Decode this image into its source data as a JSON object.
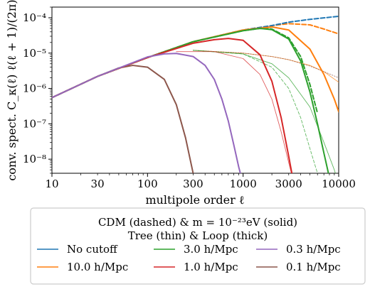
{
  "chart_data": {
    "type": "line",
    "xscale": "log",
    "yscale": "log",
    "xlim": [
      10,
      10000
    ],
    "ylim": [
      4e-09,
      0.0002
    ],
    "xlabel": "multipole order ℓ",
    "ylabel": "conv. spect. C_κ(ℓ) ℓ(ℓ + 1)/(2π)",
    "xticks": [
      10,
      30,
      100,
      300,
      1000,
      3000,
      10000
    ],
    "xtick_labels": [
      "10",
      "30",
      "100",
      "300",
      "1000",
      "3000",
      "10000"
    ],
    "yticks": [
      1e-08,
      1e-07,
      1e-06,
      1e-05,
      0.0001
    ],
    "ytick_labels": [
      "10⁻⁸",
      "10⁻⁷",
      "10⁻⁶",
      "10⁻⁵",
      "10⁻⁴"
    ],
    "grid": false,
    "legend": {
      "placement": "bottom-outside",
      "title_line1": "CDM (dashed) & m = 10⁻²³eV (solid)",
      "title_line2": "Tree (thin) & Loop (thick)",
      "entries": [
        {
          "label": "No cutoff",
          "color": "#1f77b4"
        },
        {
          "label": "3.0 h/Mpc",
          "color": "#2ca02c"
        },
        {
          "label": "0.3 h/Mpc",
          "color": "#9467bd"
        },
        {
          "label": "10.0 h/Mpc",
          "color": "#ff7f0e"
        },
        {
          "label": "1.0 h/Mpc",
          "color": "#d62728"
        },
        {
          "label": "0.1 h/Mpc",
          "color": "#8c564b"
        }
      ]
    },
    "series": [
      {
        "name": "No cutoff",
        "style": "dashed",
        "weight": "thick",
        "color": "#1f77b4",
        "x": [
          10,
          30,
          100,
          300,
          1000,
          2000,
          3000,
          5000,
          10000
        ],
        "y": [
          5.5e-07,
          2.2e-06,
          7.5e-06,
          2.1e-05,
          4.5e-05,
          6e-05,
          7.5e-05,
          9e-05,
          0.00011
        ]
      },
      {
        "name": "10.0 h/Mpc",
        "style": "dashed",
        "weight": "thick",
        "color": "#ff7f0e",
        "x": [
          10,
          30,
          100,
          300,
          1000,
          2000,
          3000,
          5000,
          7000,
          10000
        ],
        "y": [
          5.5e-07,
          2.2e-06,
          7.5e-06,
          2.1e-05,
          4.5e-05,
          6e-05,
          6.8e-05,
          6.3e-05,
          4.8e-05,
          3.5e-05
        ]
      },
      {
        "name": "10.0 h/Mpc",
        "style": "solid",
        "weight": "thick",
        "color": "#ff7f0e",
        "x": [
          10,
          30,
          100,
          300,
          1000,
          2000,
          3000,
          5000,
          7000,
          9000,
          10000
        ],
        "y": [
          5.5e-07,
          2.2e-06,
          7.5e-06,
          2.1e-05,
          4.5e-05,
          5.5e-05,
          4.5e-05,
          1.3e-05,
          2.5e-06,
          5e-07,
          2.2e-07
        ]
      },
      {
        "name": "3.0 h/Mpc",
        "style": "dashed",
        "weight": "thick",
        "color": "#2ca02c",
        "x": [
          10,
          30,
          100,
          300,
          1000,
          1500,
          2000,
          3000,
          4000,
          5000,
          6000
        ],
        "y": [
          5.5e-07,
          2.2e-06,
          7.5e-06,
          2.1e-05,
          4.3e-05,
          5e-05,
          4.8e-05,
          2.7e-05,
          8e-06,
          1.3e-06,
          2e-07
        ]
      },
      {
        "name": "3.0 h/Mpc",
        "style": "solid",
        "weight": "thick",
        "color": "#2ca02c",
        "x": [
          10,
          30,
          100,
          300,
          1000,
          1500,
          2000,
          3000,
          4000,
          5000,
          6000,
          7000,
          8000
        ],
        "y": [
          5.5e-07,
          2.2e-06,
          7.5e-06,
          2.1e-05,
          4.3e-05,
          5e-05,
          4.6e-05,
          2.5e-05,
          6e-06,
          8e-07,
          1e-07,
          1.5e-08,
          3e-09
        ]
      },
      {
        "name": "1.0 h/Mpc",
        "style": "solid",
        "weight": "thick",
        "color": "#d62728",
        "x": [
          10,
          30,
          100,
          300,
          500,
          700,
          1000,
          1500,
          2000,
          2500,
          3000,
          3300
        ],
        "y": [
          5.5e-07,
          2.2e-06,
          7.5e-06,
          1.9e-05,
          2.4e-05,
          2.6e-05,
          2.3e-05,
          9e-06,
          1.6e-06,
          1.5e-07,
          1.2e-08,
          3e-09
        ]
      },
      {
        "name": "0.3 h/Mpc",
        "style": "solid",
        "weight": "thick",
        "color": "#9467bd",
        "x": [
          10,
          30,
          100,
          150,
          200,
          300,
          400,
          500,
          600,
          700,
          800,
          900,
          1000
        ],
        "y": [
          5.5e-07,
          2.2e-06,
          7.8e-06,
          9.5e-06,
          9.8e-06,
          8e-06,
          4.5e-06,
          1.8e-06,
          5e-07,
          1.2e-07,
          2.5e-08,
          6e-09,
          2e-09
        ]
      },
      {
        "name": "0.1 h/Mpc",
        "style": "solid",
        "weight": "thick",
        "color": "#8c564b",
        "x": [
          10,
          30,
          50,
          70,
          100,
          150,
          200,
          250,
          300,
          350
        ],
        "y": [
          5.5e-07,
          2.2e-06,
          3.8e-06,
          4.5e-06,
          4e-06,
          1.8e-06,
          3.5e-07,
          4e-08,
          4e-09,
          1e-09
        ]
      },
      {
        "name": "Tree (thin)",
        "style": "solid",
        "weight": "thin",
        "color": "#ff7f0e",
        "x": [
          300,
          1000,
          2000,
          3000,
          5000,
          7000,
          10000
        ],
        "y": [
          1.2e-05,
          1e-05,
          8e-06,
          6.5e-06,
          4.5e-06,
          3e-06,
          1.5e-06
        ]
      },
      {
        "name": "Tree (thin)",
        "style": "dotted",
        "weight": "thin",
        "color": "#8c564b",
        "x": [
          300,
          1000,
          2000,
          3000,
          5000,
          7000,
          10000
        ],
        "y": [
          1.2e-05,
          1e-05,
          8e-06,
          6.5e-06,
          4.3e-06,
          3e-06,
          2e-06
        ]
      },
      {
        "name": "Tree (thin)",
        "style": "solid",
        "weight": "thin",
        "color": "#2ca02c",
        "x": [
          300,
          1000,
          2000,
          3000,
          5000,
          7000,
          9000,
          10000
        ],
        "y": [
          1.2e-05,
          9.5e-06,
          5e-06,
          2e-06,
          3e-07,
          3e-08,
          5e-09,
          2e-09
        ]
      },
      {
        "name": "Tree (thin)",
        "style": "dashed",
        "weight": "thin",
        "color": "#2ca02c",
        "x": [
          300,
          1000,
          2000,
          3000,
          4000,
          5000,
          6000,
          7000
        ],
        "y": [
          1.2e-05,
          9.5e-06,
          4e-06,
          1e-06,
          1.5e-07,
          2e-08,
          4e-09,
          1e-09
        ]
      },
      {
        "name": "Tree (thin)",
        "style": "solid",
        "weight": "thin",
        "color": "#d62728",
        "x": [
          200,
          500,
          1000,
          1500,
          2000,
          2500,
          3000,
          3500
        ],
        "y": [
          1.1e-05,
          1.1e-05,
          7e-06,
          2.5e-06,
          5e-07,
          6e-08,
          8e-09,
          1.5e-09
        ]
      },
      {
        "name": "Tree (thin)",
        "style": "solid",
        "weight": "thin",
        "color": "#9467bd",
        "x": [
          100,
          200,
          300,
          400,
          500,
          600,
          700,
          800,
          900,
          1000
        ],
        "y": [
          7.5e-06,
          8e-06,
          5.5e-06,
          3e-06,
          1.2e-06,
          3.5e-07,
          8e-08,
          1.8e-08,
          4.5e-09,
          1.5e-09
        ]
      }
    ]
  }
}
